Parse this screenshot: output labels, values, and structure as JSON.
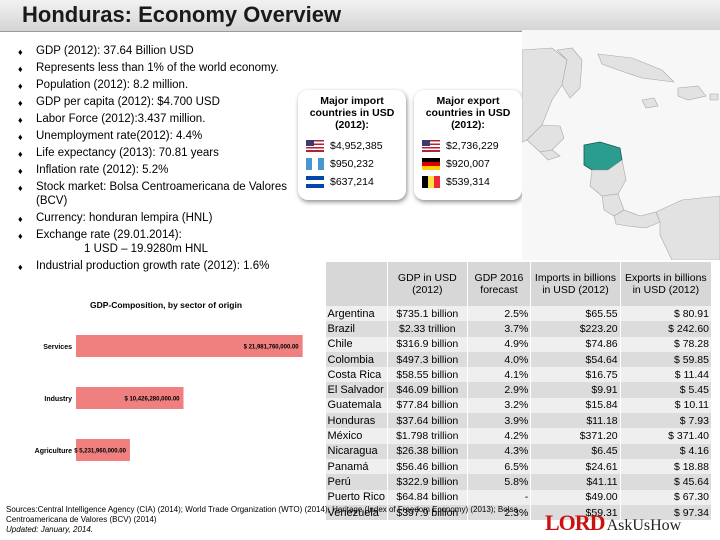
{
  "title": "Honduras: Economy Overview",
  "bullets": [
    "GDP (2012): 37.64 Billion USD",
    "Represents less than 1% of the world economy.",
    "Population (2012): 8.2 million.",
    "GDP per capita (2012): $4.700 USD",
    "Labor Force (2012):3.437 million.",
    "Unemployment rate(2012): 4.4%",
    "Life expectancy (2013): 70.81 years",
    "Inflation rate (2012): 5.2%",
    "Stock market: Bolsa Centroamericana de Valores (BCV)",
    "Currency: honduran lempira (HNL)",
    "Exchange rate (29.01.2014):",
    "Industrial production growth rate (2012): 1.6%"
  ],
  "exchange_rate_value": "1 USD – 19.9280m HNL",
  "imports_box": {
    "title": "Major import countries in USD (2012):",
    "rows": [
      {
        "flag": "us-flag",
        "value": "$4,952,385"
      },
      {
        "flag": "guatemala-flag",
        "value": "$950,232"
      },
      {
        "flag": "el-salvador-flag",
        "value": "$637,214"
      }
    ]
  },
  "exports_box": {
    "title": "Major export countries in USD (2012):",
    "rows": [
      {
        "flag": "us-flag",
        "value": "$2,736,229"
      },
      {
        "flag": "germany-flag",
        "value": "$920,007"
      },
      {
        "flag": "belgium-flag",
        "value": "$539,314"
      }
    ]
  },
  "map": {
    "region": "Central America and Caribbean",
    "highlight_color": "#2a9d8f"
  },
  "chart_data": {
    "type": "bar",
    "orientation": "horizontal",
    "title": "GDP-Composition, by sector of origin",
    "categories": [
      "Services",
      "Industry",
      "Agriculture"
    ],
    "values": [
      21981760000,
      10426280000,
      5231960000
    ],
    "data_labels": [
      "$ 21,981,760,000.00",
      "$ 10,426,280,000.00",
      "$ 5,231,960,000.00"
    ],
    "bar_color": "#f08080",
    "xlim": [
      0,
      22500000000
    ]
  },
  "table": {
    "corner": "",
    "headers": [
      "GDP in USD (2012)",
      "GDP 2016 forecast",
      "Imports in billions in USD (2012)",
      "Exports in billions in USD (2012)"
    ],
    "rows": [
      {
        "country": "Argentina",
        "gdp": "$735.1 billion",
        "forecast": "2.5%",
        "imports": "$65.55",
        "exports": "$ 80.91"
      },
      {
        "country": "Brazil",
        "gdp": "$2.33 trillion",
        "forecast": "3.7%",
        "imports": "$223.20",
        "exports": "$ 242.60"
      },
      {
        "country": "Chile",
        "gdp": "$316.9 billion",
        "forecast": "4.9%",
        "imports": "$74.86",
        "exports": "$ 78.28"
      },
      {
        "country": "Colombia",
        "gdp": "$497.3 billion",
        "forecast": "4.0%",
        "imports": "$54.64",
        "exports": "$ 59.85"
      },
      {
        "country": "Costa Rica",
        "gdp": "$58.55 billion",
        "forecast": "4.1%",
        "imports": "$16.75",
        "exports": "$ 11.44"
      },
      {
        "country": "El Salvador",
        "gdp": "$46.09 billion",
        "forecast": "2.9%",
        "imports": "$9.91",
        "exports": "$ 5.45"
      },
      {
        "country": "Guatemala",
        "gdp": "$77.84 billion",
        "forecast": "3.2%",
        "imports": "$15.84",
        "exports": "$ 10.11"
      },
      {
        "country": "Honduras",
        "gdp": "$37.64 billion",
        "forecast": "3.9%",
        "imports": "$11.18",
        "exports": "$ 7.93"
      },
      {
        "country": "México",
        "gdp": "$1.798 trillion",
        "forecast": "4.2%",
        "imports": "$371.20",
        "exports": "$ 371.40"
      },
      {
        "country": "Nicaragua",
        "gdp": "$26.38 billion",
        "forecast": "4.3%",
        "imports": "$6.45",
        "exports": "$ 4.16"
      },
      {
        "country": "Panamá",
        "gdp": "$56.46 billion",
        "forecast": "6.5%",
        "imports": "$24.61",
        "exports": "$ 18.88"
      },
      {
        "country": "Perú",
        "gdp": "$322.9 billion",
        "forecast": "5.8%",
        "imports": "$41.11",
        "exports": "$ 45.64"
      },
      {
        "country": "Puerto Rico",
        "gdp": "$64.84 billion",
        "forecast": "-",
        "imports": "$49.00",
        "exports": "$ 67.30"
      },
      {
        "country": "Venezuela",
        "gdp": "$397.9 billion",
        "forecast": "2.3%",
        "imports": "$59.31",
        "exports": "$ 97.34"
      }
    ]
  },
  "sources": "Sources:Central Intelligence Agency (CIA) (2014); World Trade Organization (WTO) (2014); Heritage (Index of Freedom Economy) (2013); Bolsa Centroamericana de Valores (BCV) (2014)",
  "updated": "Updated: January, 2014.",
  "logo": {
    "brand": "LORD",
    "tagline": "AskUsHow"
  }
}
